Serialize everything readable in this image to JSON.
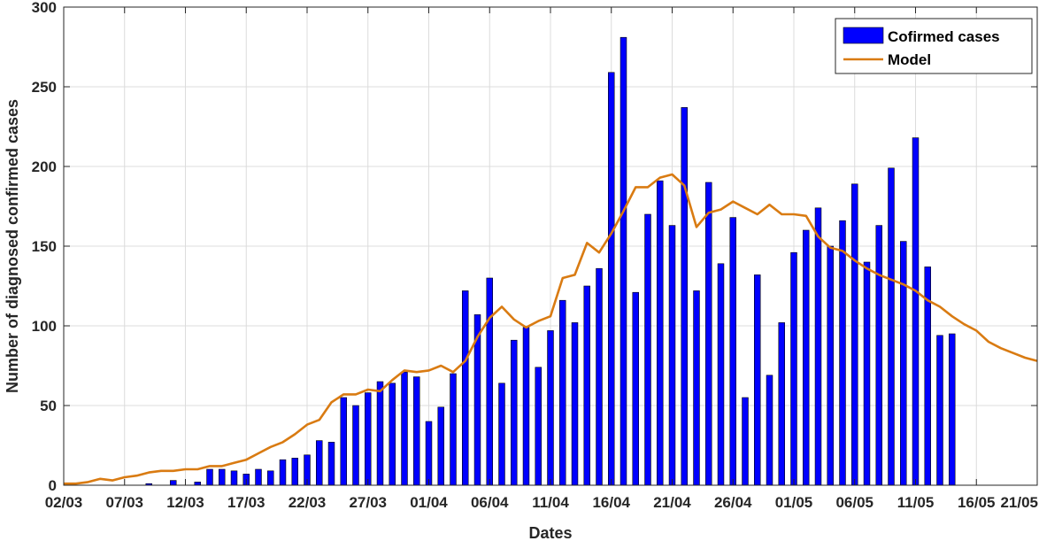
{
  "chart_data": {
    "type": "bar",
    "title": "",
    "xlabel": "Dates",
    "ylabel": "Number of diagnosed confirmed cases",
    "ylim": [
      0,
      300
    ],
    "xlim": [
      0,
      80
    ],
    "yticks": [
      0,
      50,
      100,
      150,
      200,
      250,
      300
    ],
    "xticks": [
      {
        "day": 0,
        "label": "02/03"
      },
      {
        "day": 5,
        "label": "07/03"
      },
      {
        "day": 10,
        "label": "12/03"
      },
      {
        "day": 15,
        "label": "17/03"
      },
      {
        "day": 20,
        "label": "22/03"
      },
      {
        "day": 25,
        "label": "27/03"
      },
      {
        "day": 30,
        "label": "01/04"
      },
      {
        "day": 35,
        "label": "06/04"
      },
      {
        "day": 40,
        "label": "11/04"
      },
      {
        "day": 45,
        "label": "16/04"
      },
      {
        "day": 50,
        "label": "21/04"
      },
      {
        "day": 55,
        "label": "26/04"
      },
      {
        "day": 60,
        "label": "01/05"
      },
      {
        "day": 65,
        "label": "06/05"
      },
      {
        "day": 70,
        "label": "11/05"
      },
      {
        "day": 75,
        "label": "16/05"
      },
      {
        "day": 80,
        "label": "21/05"
      }
    ],
    "grid": true,
    "legend_position": "top-right",
    "colors": {
      "bars": "#0000ff",
      "model": "#d97b12"
    },
    "series": [
      {
        "name": "Cofirmed cases",
        "type": "bar",
        "values": [
          0,
          0,
          0,
          0,
          0,
          0,
          0,
          1,
          0,
          3,
          0,
          2,
          10,
          10,
          9,
          7,
          10,
          9,
          16,
          17,
          19,
          28,
          27,
          55,
          50,
          58,
          65,
          64,
          71,
          68,
          40,
          49,
          70,
          122,
          107,
          130,
          64,
          91,
          99,
          74,
          97,
          116,
          102,
          125,
          136,
          259,
          281,
          121,
          170,
          191,
          163,
          237,
          122,
          190,
          139,
          168,
          55,
          132,
          69,
          102,
          146,
          160,
          174,
          150,
          166,
          189,
          140,
          163,
          199,
          153,
          218,
          137,
          94,
          95
        ]
      },
      {
        "name": "Model",
        "type": "line",
        "values": [
          1,
          1,
          2,
          4,
          3,
          5,
          6,
          8,
          9,
          9,
          10,
          10,
          12,
          12,
          14,
          16,
          20,
          24,
          27,
          32,
          38,
          41,
          52,
          57,
          57,
          60,
          59,
          66,
          72,
          71,
          72,
          75,
          71,
          78,
          93,
          105,
          112,
          104,
          99,
          103,
          106,
          130,
          132,
          152,
          146,
          158,
          172,
          187,
          187,
          193,
          195,
          188,
          162,
          171,
          173,
          178,
          174,
          170,
          176,
          170,
          170,
          169,
          156,
          149,
          147,
          141,
          136,
          132,
          129,
          126,
          122,
          116,
          112,
          106,
          101,
          97,
          90,
          86,
          83,
          80,
          78
        ]
      }
    ]
  }
}
